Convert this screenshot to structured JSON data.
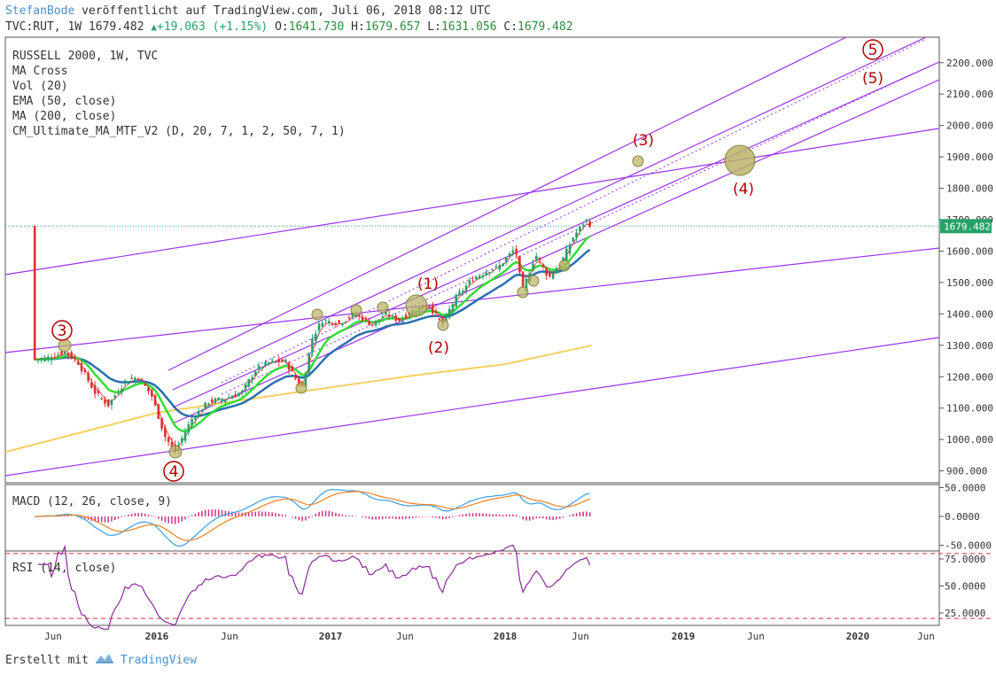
{
  "header": {
    "author": "StefanBode",
    "published": "veröffentlicht auf TradingView.com, Juli 06, 2018 08:12 UTC",
    "symbol": "TVC:RUT, 1W",
    "last": "1679.482",
    "change": "+19.063 (+1.15%)",
    "o_label": "O:",
    "o_val": "1641.730",
    "h_label": "H:",
    "h_val": "1679.657",
    "l_label": "L:",
    "l_val": "1631.056",
    "c_label": "C:",
    "c_val": "1679.482"
  },
  "indicators": [
    "RUSSELL 2000, 1W, TVC",
    "MA Cross",
    "Vol (20)",
    "EMA (50, close)",
    "MA (200, close)",
    "CM_Ultimate_MA_MTF_V2 (D, 20, 7, 1, 2, 50, 7, 1)"
  ],
  "macd_label": "MACD (12, 26, close, 9)",
  "rsi_label": "RSI (14, close)",
  "footer": {
    "text": "Erstellt mit",
    "brand": "TradingView"
  },
  "colors": {
    "candle_up": "#26a269",
    "candle_down": "#e03030",
    "channel": "#9933ee",
    "ema50": "#2a6fb0",
    "ma200": "#f5d060",
    "ma_cross_fast": "#33dd33",
    "annotation": "#b00000",
    "marker": "#b8b060",
    "rsi": "#8a2a9a",
    "macd": "#3aa0e8",
    "signal": "#f08020",
    "hist": "#cc3388"
  },
  "chart_data": {
    "type": "candlestick",
    "symbol": "RUSSELL 2000",
    "timeframe": "1W",
    "x_axis_labels": [
      "Jun",
      "2016",
      "Jun",
      "2017",
      "Jun",
      "2018",
      "Jun",
      "2019",
      "Jun",
      "2020",
      "Jun"
    ],
    "y_axis": {
      "ticks": [
        "2200.000",
        "2100.000",
        "2000.000",
        "1900.000",
        "1800.000",
        "1700.000",
        "1600.000",
        "1500.000",
        "1400.000",
        "1300.000",
        "1200.000",
        "1100.000",
        "1000.000",
        "900.000"
      ],
      "ylim": [
        860,
        2270
      ]
    },
    "last_price": "1679.482",
    "price_path": [
      [
        "2015-04-20",
        1255
      ],
      [
        "2015-05-18",
        1260
      ],
      [
        "2015-06-22",
        1280
      ],
      [
        "2015-07-20",
        1245
      ],
      [
        "2015-08-24",
        1150
      ],
      [
        "2015-09-21",
        1110
      ],
      [
        "2015-10-26",
        1185
      ],
      [
        "2015-11-23",
        1200
      ],
      [
        "2015-12-21",
        1140
      ],
      [
        "2016-01-18",
        1010
      ],
      [
        "2016-02-08",
        960
      ],
      [
        "2016-03-14",
        1065
      ],
      [
        "2016-04-18",
        1120
      ],
      [
        "2016-05-23",
        1130
      ],
      [
        "2016-06-27",
        1150
      ],
      [
        "2016-07-25",
        1220
      ],
      [
        "2016-08-22",
        1245
      ],
      [
        "2016-09-26",
        1250
      ],
      [
        "2016-10-31",
        1160
      ],
      [
        "2016-11-21",
        1320
      ],
      [
        "2016-12-12",
        1380
      ],
      [
        "2017-01-16",
        1370
      ],
      [
        "2017-02-20",
        1400
      ],
      [
        "2017-03-27",
        1365
      ],
      [
        "2017-04-24",
        1400
      ],
      [
        "2017-05-22",
        1380
      ],
      [
        "2017-06-26",
        1415
      ],
      [
        "2017-07-24",
        1430
      ],
      [
        "2017-08-21",
        1365
      ],
      [
        "2017-09-18",
        1450
      ],
      [
        "2017-10-23",
        1510
      ],
      [
        "2017-11-27",
        1540
      ],
      [
        "2017-12-18",
        1550
      ],
      [
        "2018-01-22",
        1610
      ],
      [
        "2018-02-05",
        1470
      ],
      [
        "2018-03-05",
        1590
      ],
      [
        "2018-04-02",
        1515
      ],
      [
        "2018-04-30",
        1570
      ],
      [
        "2018-05-21",
        1640
      ],
      [
        "2018-06-18",
        1700
      ],
      [
        "2018-07-02",
        1679
      ]
    ],
    "annotations": [
      {
        "label": "3",
        "date": "2015-07-01",
        "value": 1300,
        "style": "circled"
      },
      {
        "label": "4",
        "date": "2016-02-10",
        "value": 955,
        "style": "circled"
      },
      {
        "label": "(1)",
        "date": "2017-07-25",
        "value": 1430,
        "style": "plain"
      },
      {
        "label": "(2)",
        "date": "2017-08-20",
        "value": 1365,
        "style": "plain"
      },
      {
        "label": "(3)",
        "date": "2018-10-15",
        "value": 1890,
        "style": "plain"
      },
      {
        "label": "(4)",
        "date": "2019-03-20",
        "value": 1885,
        "style": "plain"
      },
      {
        "label": "5",
        "date": "2020-01-01",
        "value": 2250,
        "style": "circled"
      },
      {
        "label": "(5)",
        "date": "2020-01-01",
        "value": 2150,
        "style": "plain"
      }
    ],
    "macd": {
      "label": "MACD (12, 26, close, 9)",
      "ticks": [
        "50.0000",
        "0.0000",
        "-50.0000"
      ]
    },
    "rsi": {
      "label": "RSI (14, close)",
      "ticks": [
        "75.0000",
        "50.0000",
        "25.0000"
      ],
      "bands": [
        80,
        20
      ]
    }
  }
}
